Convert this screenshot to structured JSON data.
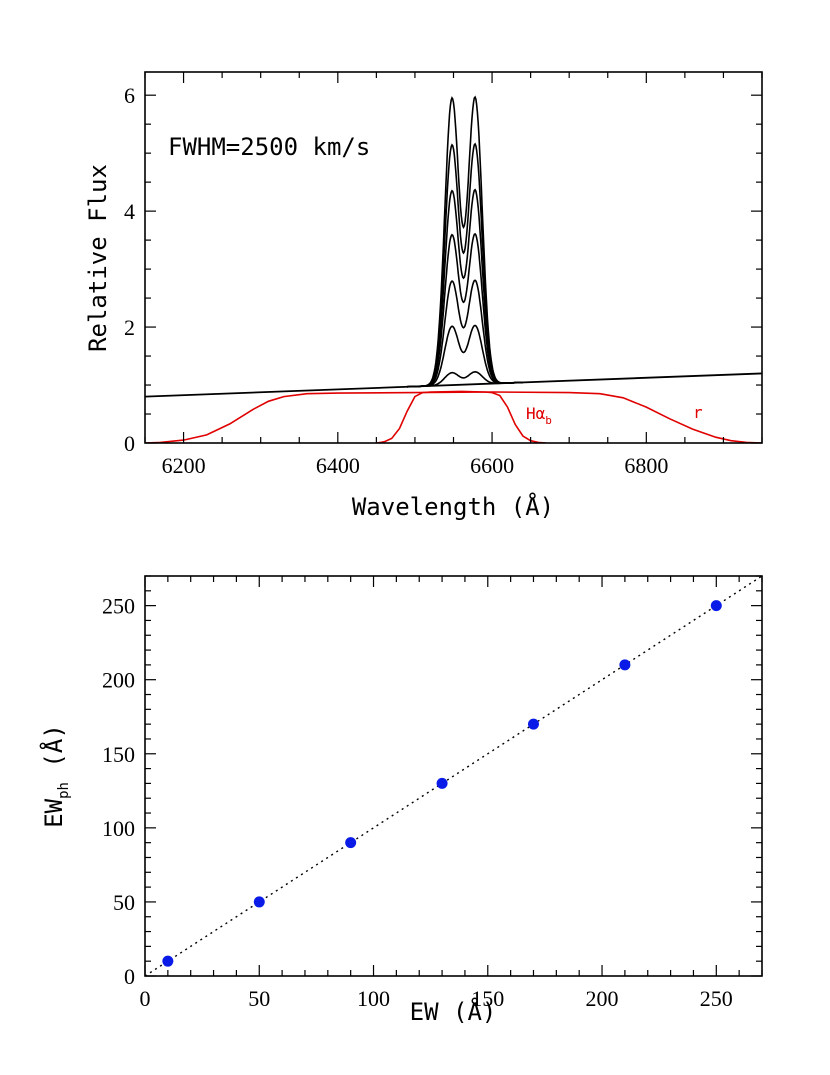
{
  "chart_data": [
    {
      "type": "line",
      "annotation": "FWHM=2500 km/s",
      "xlabel": "Wavelength (Å)",
      "ylabel": "Relative Flux",
      "xlim": [
        6150,
        6950
      ],
      "ylim": [
        0,
        6.4
      ],
      "xticks": [
        6200,
        6400,
        6600,
        6800
      ],
      "yticks": [
        0,
        2,
        4,
        6
      ],
      "continuum": {
        "x": [
          6150,
          6950
        ],
        "y": [
          0.8,
          1.2
        ],
        "color": "#000000"
      },
      "emission_lines": {
        "centers": [
          6548,
          6578
        ],
        "fwhm_angstrom": 22,
        "peak_fluxes": [
          1.22,
          2.02,
          2.8,
          3.6,
          4.36,
          5.15,
          5.96
        ],
        "color": "#000000"
      },
      "filters": [
        {
          "name": "Hα_b",
          "label_main": "Hα",
          "label_sub": "b",
          "color": "#e00000",
          "points": [
            [
              6450,
              0
            ],
            [
              6460,
              0.02
            ],
            [
              6470,
              0.08
            ],
            [
              6480,
              0.25
            ],
            [
              6490,
              0.55
            ],
            [
              6500,
              0.8
            ],
            [
              6510,
              0.87
            ],
            [
              6520,
              0.88
            ],
            [
              6560,
              0.89
            ],
            [
              6590,
              0.88
            ],
            [
              6600,
              0.87
            ],
            [
              6610,
              0.82
            ],
            [
              6620,
              0.62
            ],
            [
              6630,
              0.32
            ],
            [
              6640,
              0.12
            ],
            [
              6650,
              0.04
            ],
            [
              6660,
              0.01
            ],
            [
              6670,
              0
            ]
          ]
        },
        {
          "name": "r",
          "label_main": "r",
          "label_sub": "",
          "color": "#e00000",
          "points": [
            [
              6150,
              0
            ],
            [
              6170,
              0.01
            ],
            [
              6200,
              0.05
            ],
            [
              6230,
              0.14
            ],
            [
              6260,
              0.33
            ],
            [
              6290,
              0.58
            ],
            [
              6310,
              0.72
            ],
            [
              6330,
              0.8
            ],
            [
              6360,
              0.85
            ],
            [
              6400,
              0.86
            ],
            [
              6500,
              0.87
            ],
            [
              6600,
              0.88
            ],
            [
              6700,
              0.87
            ],
            [
              6740,
              0.85
            ],
            [
              6770,
              0.78
            ],
            [
              6800,
              0.62
            ],
            [
              6830,
              0.42
            ],
            [
              6860,
              0.24
            ],
            [
              6890,
              0.1
            ],
            [
              6910,
              0.04
            ],
            [
              6930,
              0.01
            ],
            [
              6950,
              0
            ]
          ]
        }
      ]
    },
    {
      "type": "scatter",
      "xlabel": "EW (Å)",
      "ylabel_main": "EW",
      "ylabel_sub": "ph",
      "ylabel_unit": " (Å)",
      "xlim": [
        0,
        270
      ],
      "ylim": [
        0,
        270
      ],
      "xticks": [
        0,
        50,
        100,
        150,
        200,
        250
      ],
      "yticks": [
        0,
        50,
        100,
        150,
        200,
        250
      ],
      "point_color": "#0a1be8",
      "x": [
        10,
        50,
        90,
        130,
        170,
        210,
        250
      ],
      "y": [
        10,
        50,
        90,
        130,
        170,
        210,
        250
      ],
      "reference_line": "dotted 1:1"
    }
  ]
}
